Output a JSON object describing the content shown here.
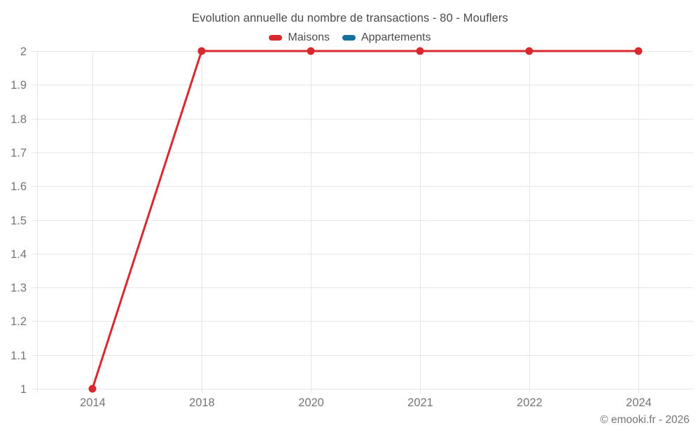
{
  "title": "Evolution annuelle du nombre de transactions - 80 - Mouflers",
  "footer": "© emooki.fr - 2026",
  "legend": [
    {
      "label": "Maisons",
      "color": "#d7292e"
    },
    {
      "label": "Appartements",
      "color": "#176f9e"
    }
  ],
  "colors": {
    "grid": "#e6e6e6",
    "axis_text": "#757575",
    "title_text": "#4a4a4a",
    "maisons_red": "#d7292e",
    "appartements_blue": "#176f9e"
  },
  "chart_data": {
    "type": "line",
    "title": "Evolution annuelle du nombre de transactions - 80 - Mouflers",
    "categories": [
      "2014",
      "2018",
      "2020",
      "2021",
      "2022",
      "2024"
    ],
    "series": [
      {
        "name": "Maisons",
        "color": "#d7292e",
        "values": [
          1,
          2,
          2,
          2,
          2,
          2
        ]
      },
      {
        "name": "Appartements",
        "color": "#176f9e",
        "values": []
      }
    ],
    "xlabel": "",
    "ylabel": "",
    "ylim": [
      1,
      2
    ],
    "yticks": [
      1,
      1.1,
      1.2,
      1.3,
      1.4,
      1.5,
      1.6,
      1.7,
      1.8,
      1.9,
      2
    ],
    "ytick_labels": [
      "1",
      "1.1",
      "1.2",
      "1.3",
      "1.4",
      "1.5",
      "1.6",
      "1.7",
      "1.8",
      "1.9",
      "2"
    ],
    "grid": true,
    "legend_position": "top",
    "marker": "circle"
  }
}
